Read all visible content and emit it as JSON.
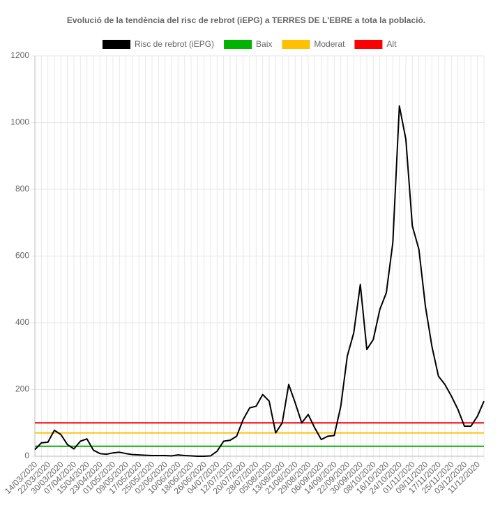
{
  "chart_data": {
    "type": "line",
    "title": "Evolució de la tendència del risc de rebrot (iEPG) a TERRES DE L'EBRE a tota la població.",
    "categories": [
      "14/03/2020",
      null,
      "22/03/2020",
      null,
      "30/03/2020",
      null,
      "07/04/2020",
      null,
      "15/04/2020",
      null,
      "23/04/2020",
      null,
      "01/05/2020",
      null,
      "09/05/2020",
      null,
      "17/05/2020",
      null,
      "25/05/2020",
      null,
      "02/06/2020",
      null,
      "10/06/2020",
      null,
      "18/06/2020",
      null,
      "26/06/2020",
      null,
      "04/07/2020",
      null,
      "12/07/2020",
      null,
      "20/07/2020",
      null,
      "28/07/2020",
      null,
      "05/08/2020",
      null,
      "13/08/2020",
      null,
      "21/08/2020",
      null,
      "29/08/2020",
      null,
      "06/09/2020",
      null,
      "14/09/2020",
      null,
      "22/09/2020",
      null,
      "30/09/2020",
      null,
      "08/10/2020",
      null,
      "16/10/2020",
      null,
      "24/10/2020",
      null,
      "01/11/2020",
      null,
      "09/11/2020",
      null,
      "17/11/2020",
      null,
      "25/11/2020",
      null,
      "03/12/2020",
      null,
      "11/12/2020",
      null
    ],
    "series": [
      {
        "name": "Risc de rebrot (iEPG)",
        "color": "#000000",
        "values": [
          20,
          40,
          42,
          78,
          65,
          35,
          22,
          45,
          52,
          18,
          8,
          6,
          10,
          12,
          8,
          5,
          4,
          3,
          2,
          2,
          2,
          1,
          4,
          2,
          1,
          0,
          0,
          1,
          15,
          45,
          48,
          60,
          110,
          145,
          150,
          185,
          165,
          70,
          100,
          215,
          160,
          100,
          125,
          85,
          50,
          60,
          62,
          150,
          300,
          370,
          515,
          320,
          350,
          440,
          490,
          640,
          1050,
          950,
          690,
          620,
          450,
          330,
          240,
          215,
          180,
          140,
          90,
          90,
          120,
          165
        ]
      },
      {
        "name": "Baix",
        "color": "#00b400",
        "values": [
          30,
          30,
          30,
          30,
          30,
          30,
          30,
          30,
          30,
          30,
          30,
          30,
          30,
          30,
          30,
          30,
          30,
          30,
          30,
          30,
          30,
          30,
          30,
          30,
          30,
          30,
          30,
          30,
          30,
          30,
          30,
          30,
          30,
          30,
          30,
          30,
          30,
          30,
          30,
          30,
          30,
          30,
          30,
          30,
          30,
          30,
          30,
          30,
          30,
          30,
          30,
          30,
          30,
          30,
          30,
          30,
          30,
          30,
          30,
          30,
          30,
          30,
          30,
          30,
          30,
          30,
          30,
          30,
          30,
          30
        ]
      },
      {
        "name": "Moderat",
        "color": "#ffc000",
        "values": [
          70,
          70,
          70,
          70,
          70,
          70,
          70,
          70,
          70,
          70,
          70,
          70,
          70,
          70,
          70,
          70,
          70,
          70,
          70,
          70,
          70,
          70,
          70,
          70,
          70,
          70,
          70,
          70,
          70,
          70,
          70,
          70,
          70,
          70,
          70,
          70,
          70,
          70,
          70,
          70,
          70,
          70,
          70,
          70,
          70,
          70,
          70,
          70,
          70,
          70,
          70,
          70,
          70,
          70,
          70,
          70,
          70,
          70,
          70,
          70,
          70,
          70,
          70,
          70,
          70,
          70,
          70,
          70,
          70,
          70
        ]
      },
      {
        "name": "Alt",
        "color": "#ff0000",
        "values": [
          100,
          100,
          100,
          100,
          100,
          100,
          100,
          100,
          100,
          100,
          100,
          100,
          100,
          100,
          100,
          100,
          100,
          100,
          100,
          100,
          100,
          100,
          100,
          100,
          100,
          100,
          100,
          100,
          100,
          100,
          100,
          100,
          100,
          100,
          100,
          100,
          100,
          100,
          100,
          100,
          100,
          100,
          100,
          100,
          100,
          100,
          100,
          100,
          100,
          100,
          100,
          100,
          100,
          100,
          100,
          100,
          100,
          100,
          100,
          100,
          100,
          100,
          100,
          100,
          100,
          100,
          100,
          100,
          100,
          100
        ]
      }
    ],
    "ylim": [
      0,
      1200
    ],
    "yticks": [
      0,
      200,
      400,
      600,
      800,
      1000,
      1200
    ],
    "grid": true
  }
}
